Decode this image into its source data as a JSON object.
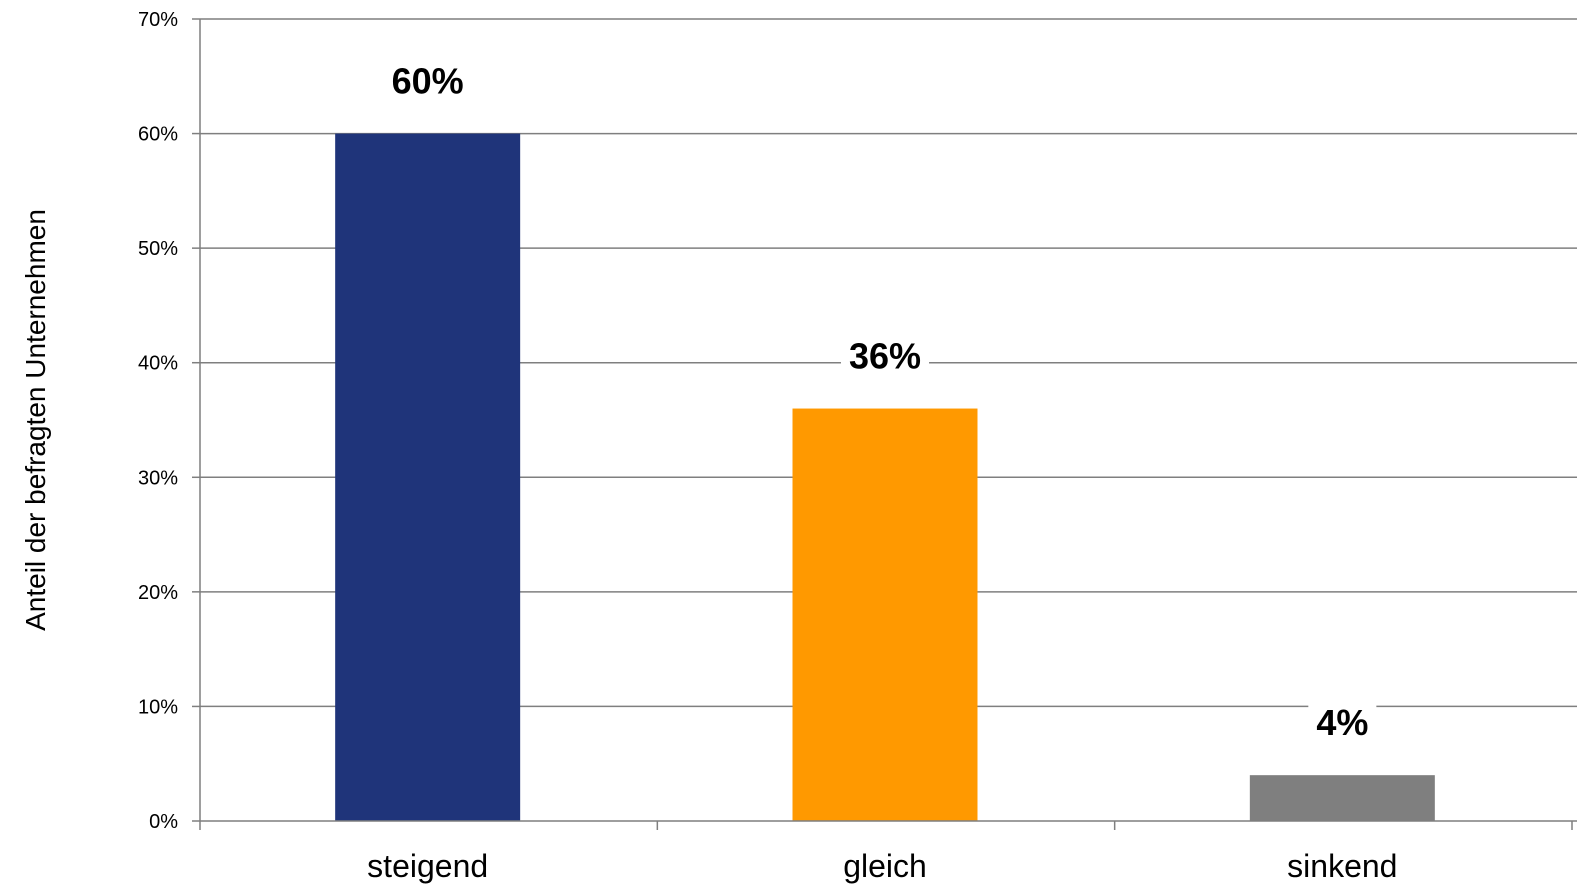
{
  "chart_data": {
    "type": "bar",
    "categories": [
      "steigend",
      "gleich",
      "sinkend"
    ],
    "values": [
      60,
      36,
      4
    ],
    "value_labels": [
      "60%",
      "36%",
      "4%"
    ],
    "colors": [
      "#1f347a",
      "#ff9900",
      "#7f7f7f"
    ],
    "title": "",
    "xlabel": "",
    "ylabel": "Anteil der befragten Unternehmen",
    "ylim": [
      0,
      70
    ],
    "yticks": [
      0,
      10,
      20,
      30,
      40,
      50,
      60,
      70
    ],
    "ytick_labels": [
      "0%",
      "10%",
      "20%",
      "30%",
      "40%",
      "50%",
      "60%",
      "70%"
    ],
    "grid": true,
    "legend": "none"
  }
}
